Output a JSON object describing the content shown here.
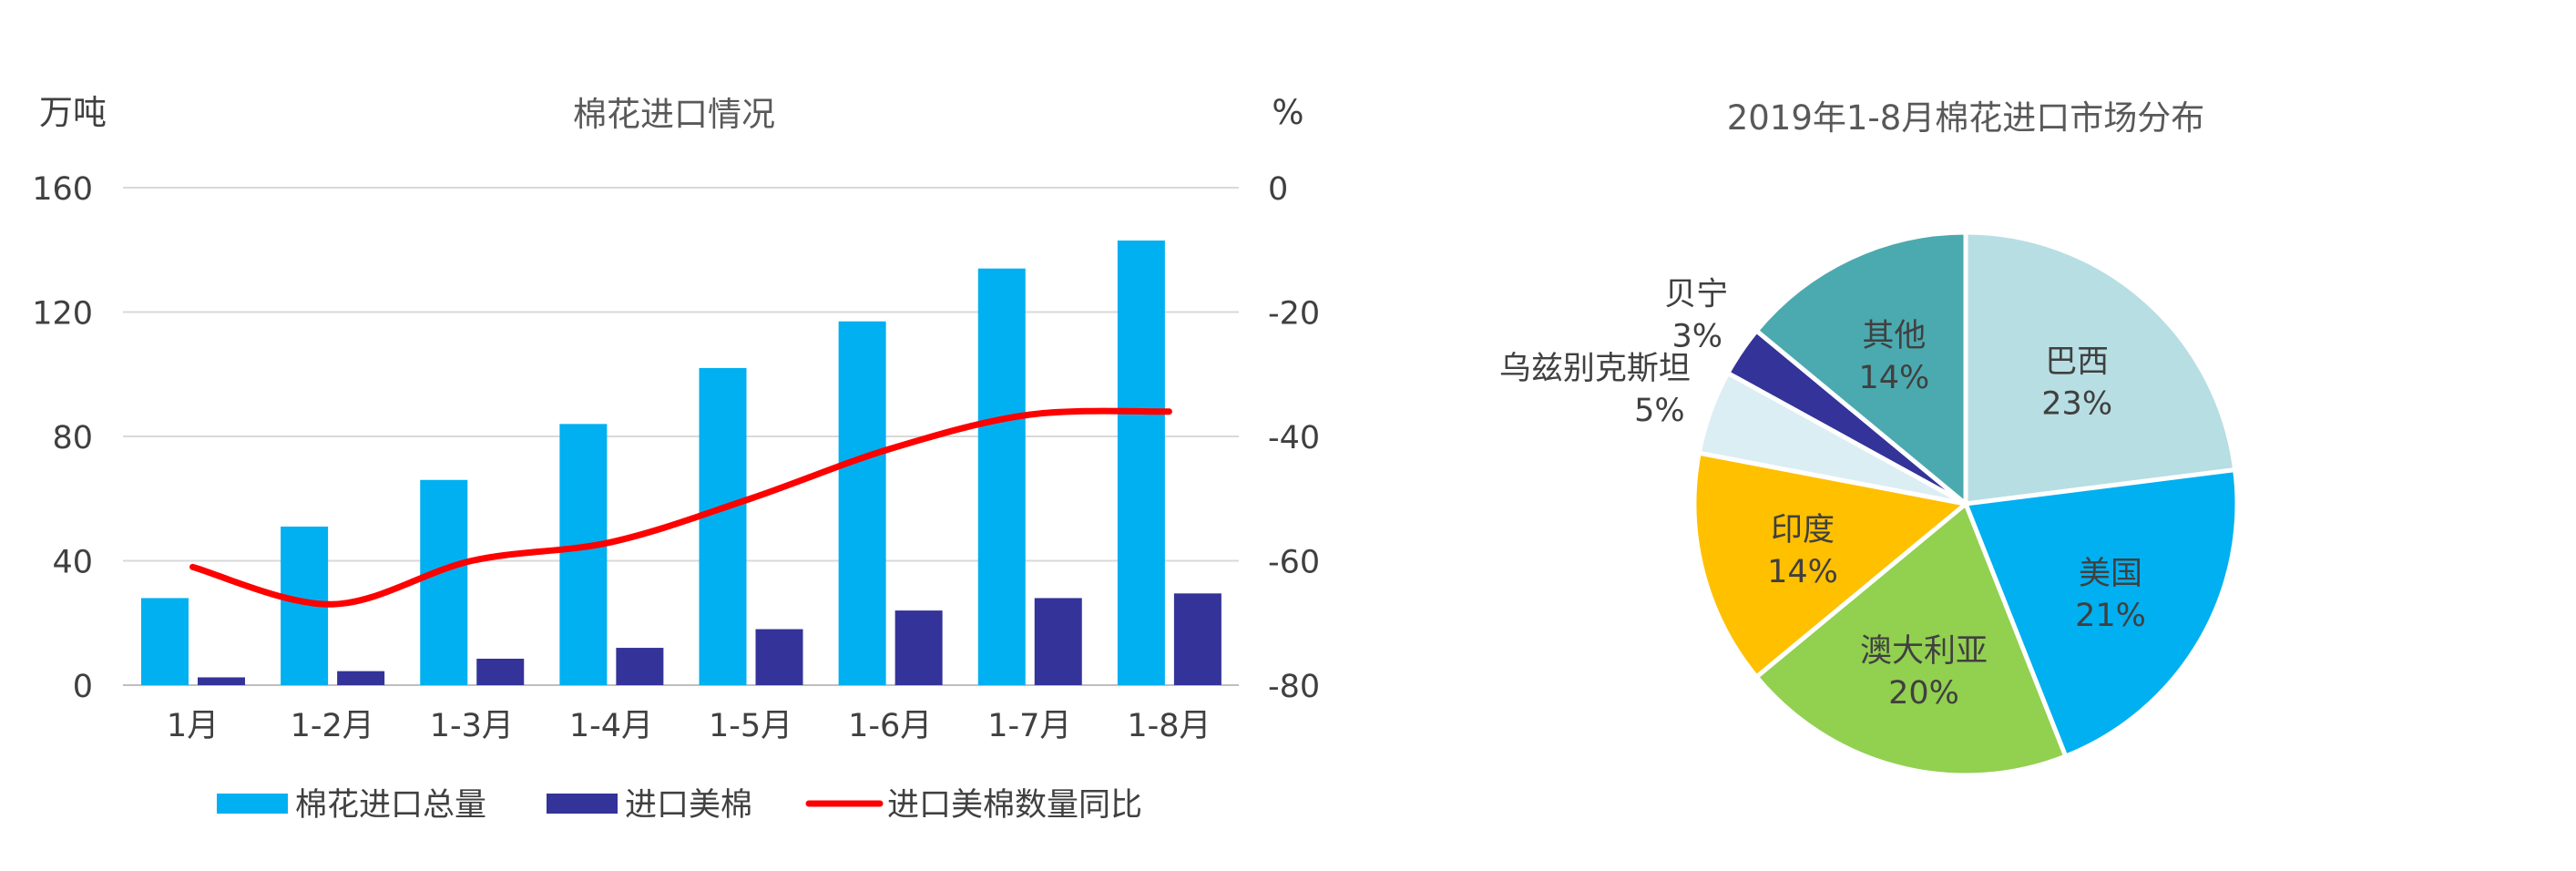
{
  "chart_data": [
    {
      "type": "bar",
      "title": "棉花进口情况",
      "ylabel": "万吨",
      "y2label": "%",
      "ylim": [
        0,
        160
      ],
      "y2lim": [
        -80,
        0
      ],
      "yticks": [
        0,
        40,
        80,
        120,
        160
      ],
      "y2ticks": [
        -80,
        -60,
        -40,
        -20,
        0
      ],
      "grid": true,
      "legend_position": "bottom",
      "categories": [
        "1月",
        "1-2月",
        "1-3月",
        "1-4月",
        "1-5月",
        "1-6月",
        "1-7月",
        "1-8月"
      ],
      "series": [
        {
          "name": "棉花进口总量",
          "kind": "bar",
          "axis": "left",
          "color": "#00b0f0",
          "values": [
            28,
            51,
            66,
            84,
            102,
            117,
            134,
            143
          ]
        },
        {
          "name": "进口美棉",
          "kind": "bar",
          "axis": "left",
          "color": "#333399",
          "values": [
            2.5,
            4.5,
            8.5,
            12,
            18,
            24,
            28,
            29.5
          ]
        },
        {
          "name": "进口美棉数量同比",
          "kind": "line",
          "axis": "right",
          "color": "#ff0000",
          "values": [
            -61,
            -67,
            -60,
            -57,
            -50,
            -42,
            -36.5,
            -36
          ]
        }
      ]
    },
    {
      "type": "pie",
      "title": "2019年1-8月棉花进口市场分布",
      "slices": [
        {
          "label": "巴西",
          "value": 23,
          "text": "23%",
          "color": "#b7dee3"
        },
        {
          "label": "美国",
          "value": 21,
          "text": "21%",
          "color": "#00b0f0"
        },
        {
          "label": "澳大利亚",
          "value": 20,
          "text": "20%",
          "color": "#92d050"
        },
        {
          "label": "印度",
          "value": 14,
          "text": "14%",
          "color": "#ffc000"
        },
        {
          "label": "乌兹别克斯坦",
          "value": 5,
          "text": "5%",
          "color": "#dbeef3"
        },
        {
          "label": "贝宁",
          "value": 3,
          "text": "3%",
          "color": "#333399"
        },
        {
          "label": "其他",
          "value": 14,
          "text": "14%",
          "color": "#4baaaf"
        }
      ]
    }
  ]
}
